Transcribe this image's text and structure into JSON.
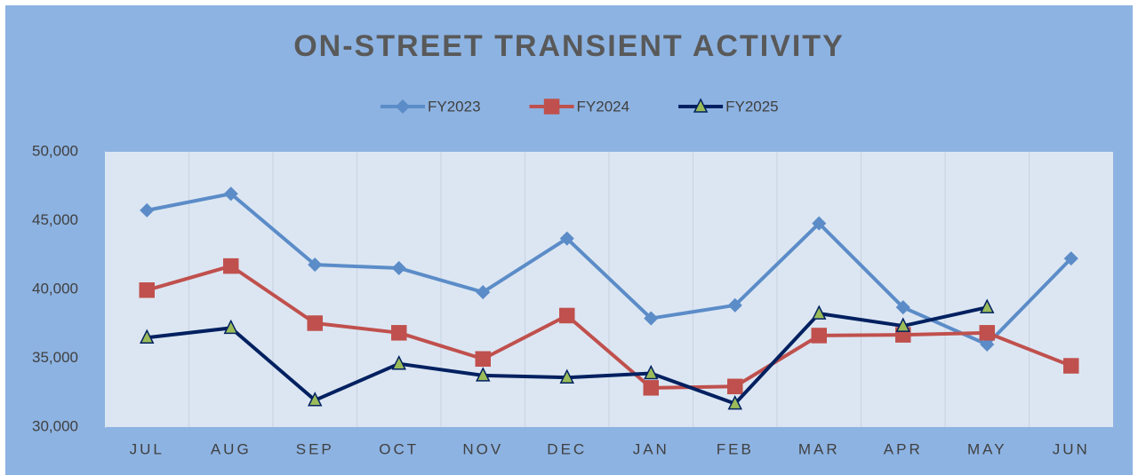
{
  "chart_data": {
    "type": "line",
    "title": "ON-STREET TRANSIENT ACTIVITY",
    "categories": [
      "JUL",
      "AUG",
      "SEP",
      "OCT",
      "NOV",
      "DEC",
      "JAN",
      "FEB",
      "MAR",
      "APR",
      "MAY",
      "JUN"
    ],
    "series": [
      {
        "name": "FY2023",
        "color": "#5b8cc8",
        "marker": "diamond",
        "values": [
          45750,
          46950,
          41800,
          41550,
          39800,
          43700,
          37900,
          38850,
          44800,
          38700,
          36000,
          42250
        ]
      },
      {
        "name": "FY2024",
        "color": "#c0504d",
        "marker": "square",
        "values": [
          39950,
          41700,
          37550,
          36850,
          34950,
          38100,
          32850,
          32950,
          36650,
          36700,
          36850,
          34450
        ]
      },
      {
        "name": "FY2025",
        "color": "#002060",
        "marker": "triangle",
        "marker_color": "#9bbb59",
        "values": [
          36500,
          37200,
          31950,
          34600,
          33750,
          33600,
          33900,
          31700,
          38250,
          37350,
          38700,
          null
        ]
      }
    ],
    "ylim": [
      30000,
      50000
    ],
    "yticks": [
      {
        "value": 30000,
        "label": "30,000"
      },
      {
        "value": 35000,
        "label": "35,000"
      },
      {
        "value": 40000,
        "label": "40,000"
      },
      {
        "value": 45000,
        "label": "45,000"
      },
      {
        "value": 50000,
        "label": "50,000"
      }
    ],
    "grid": true,
    "legend": "top"
  }
}
